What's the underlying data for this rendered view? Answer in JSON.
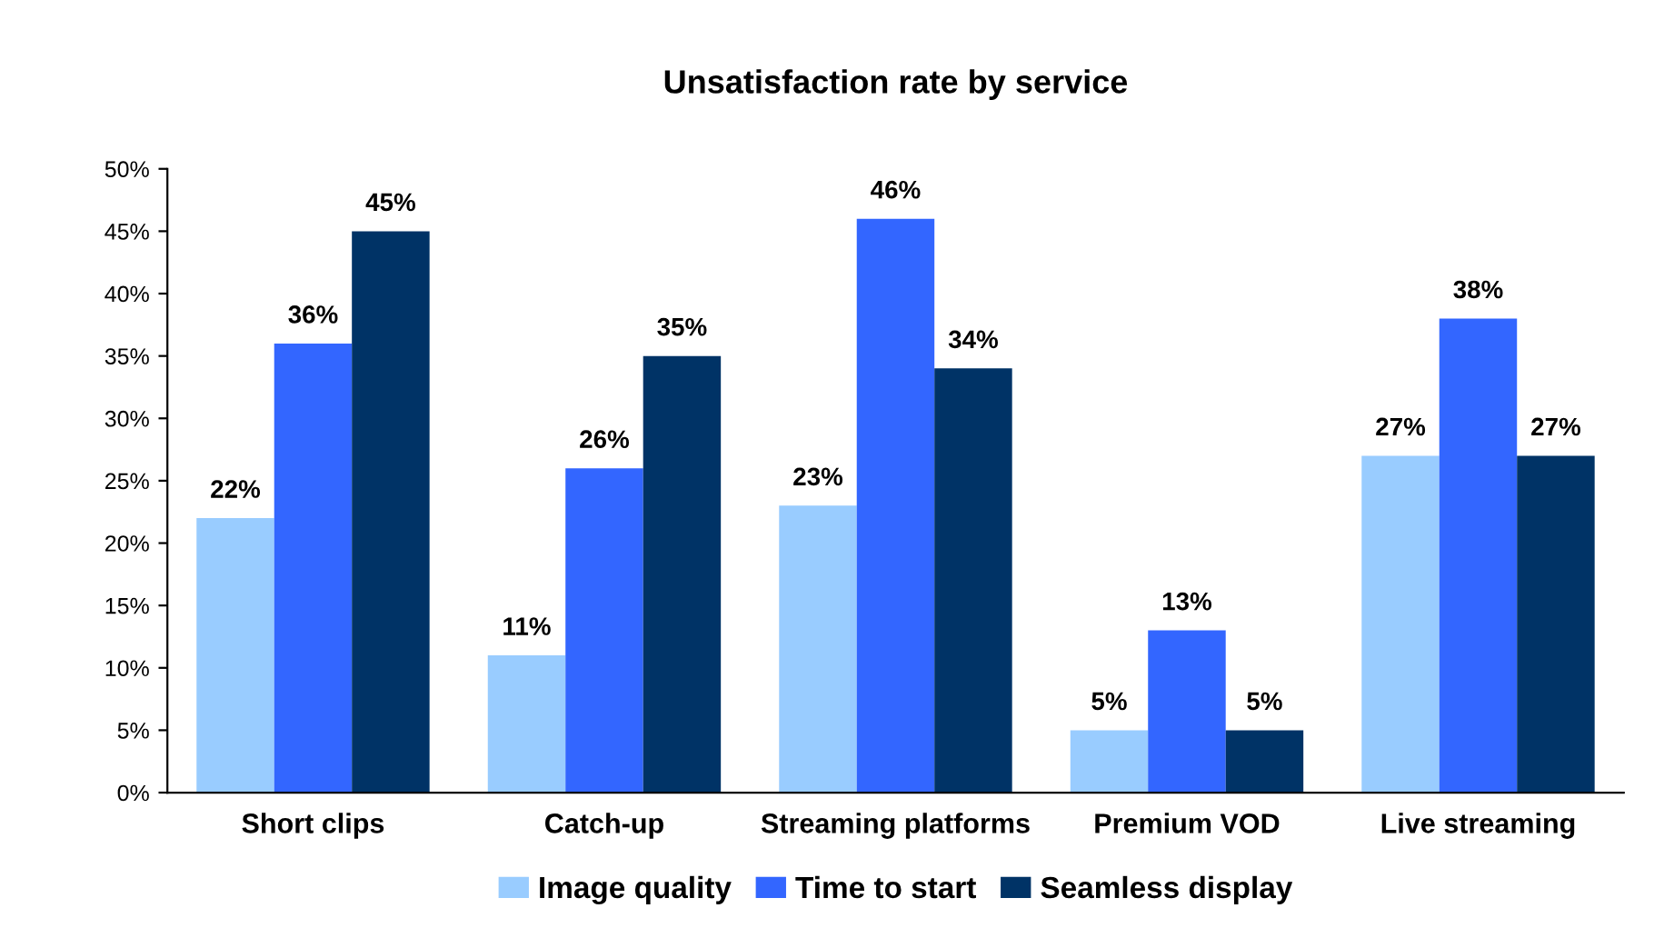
{
  "chart_data": {
    "type": "bar",
    "title": "Unsatisfaction rate by service",
    "categories": [
      "Short clips",
      "Catch-up",
      "Streaming platforms",
      "Premium VOD",
      "Live streaming"
    ],
    "series": [
      {
        "name": "Image quality",
        "color": "#99ccff",
        "values": [
          22,
          11,
          23,
          5,
          27
        ],
        "value_labels": [
          "22%",
          "11%",
          "23%",
          "5%",
          "27%"
        ]
      },
      {
        "name": "Time to start",
        "color": "#3366ff",
        "values": [
          36,
          26,
          46,
          13,
          38
        ],
        "value_labels": [
          "36%",
          "26%",
          "46%",
          "13%",
          "38%"
        ]
      },
      {
        "name": "Seamless display",
        "color": "#003366",
        "values": [
          45,
          35,
          34,
          5,
          27
        ],
        "value_labels": [
          "45%",
          "35%",
          "34%",
          "5%",
          "27%"
        ]
      }
    ],
    "ylim": [
      0,
      50
    ],
    "yticks": [
      {
        "value": 0,
        "label": "0%"
      },
      {
        "value": 5,
        "label": "5%"
      },
      {
        "value": 10,
        "label": "10%"
      },
      {
        "value": 15,
        "label": "15%"
      },
      {
        "value": 20,
        "label": "20%"
      },
      {
        "value": 25,
        "label": "25%"
      },
      {
        "value": 30,
        "label": "30%"
      },
      {
        "value": 35,
        "label": "35%"
      },
      {
        "value": 40,
        "label": "40%"
      },
      {
        "value": 45,
        "label": "45%"
      },
      {
        "value": 50,
        "label": "50%"
      }
    ],
    "grid": false,
    "legend": "bottom"
  }
}
